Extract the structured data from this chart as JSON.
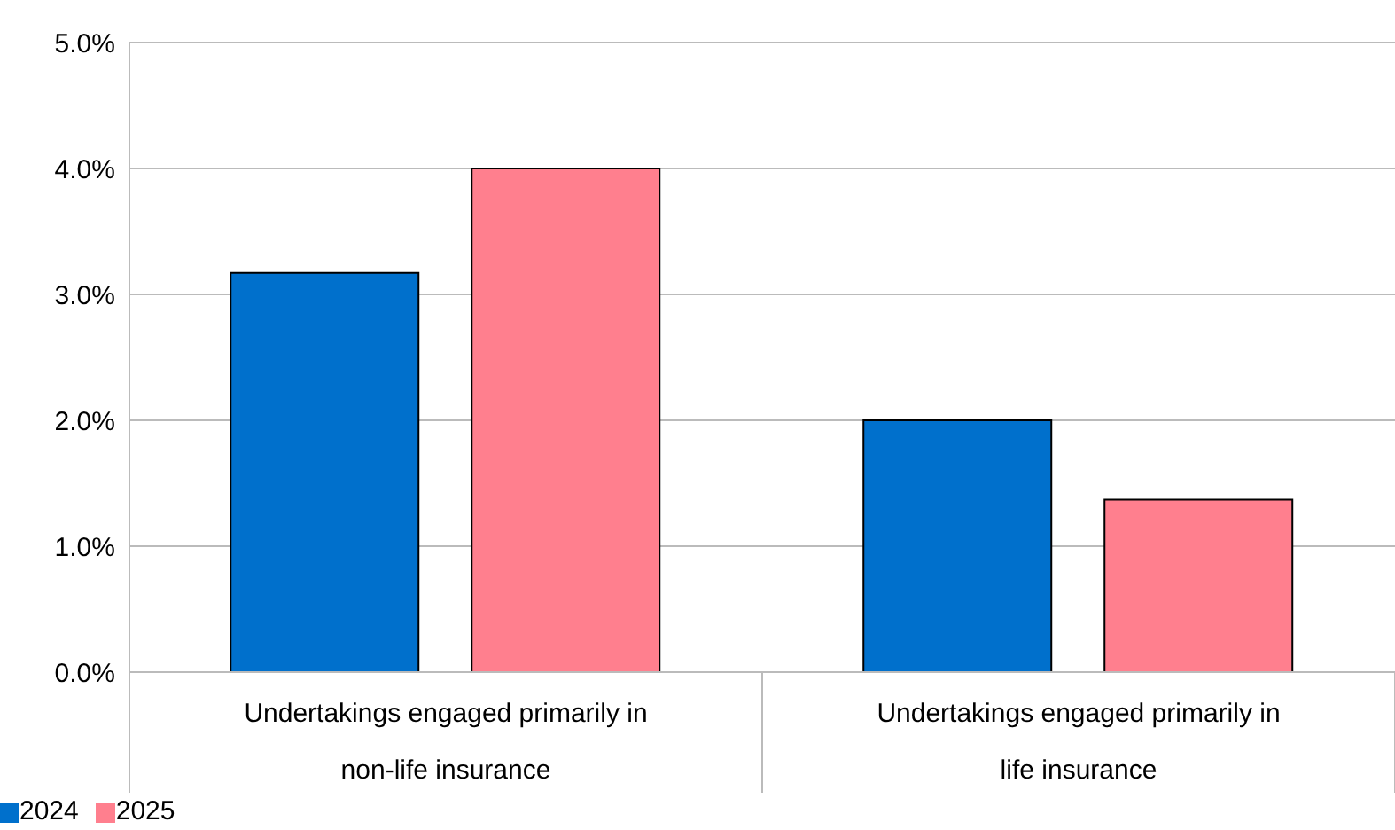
{
  "chart_data": {
    "type": "bar",
    "categories": [
      "Undertakings engaged primarily in non-life insurance",
      "Undertakings engaged primarily in life insurance"
    ],
    "series": [
      {
        "name": "2024",
        "color": "#0070cc",
        "values": [
          3.17,
          2.0
        ]
      },
      {
        "name": "2025",
        "color": "#ff7f8e",
        "values": [
          4.0,
          1.37
        ]
      }
    ],
    "ylim": [
      0,
      5
    ],
    "yticks": [
      {
        "value": 0,
        "label": "0.0%"
      },
      {
        "value": 1,
        "label": "1.0%"
      },
      {
        "value": 2,
        "label": "2.0%"
      },
      {
        "value": 3,
        "label": "3.0%"
      },
      {
        "value": 4,
        "label": "4.0%"
      },
      {
        "value": 5,
        "label": "5.0%"
      }
    ],
    "grid": "y",
    "legend": "bottom left"
  }
}
